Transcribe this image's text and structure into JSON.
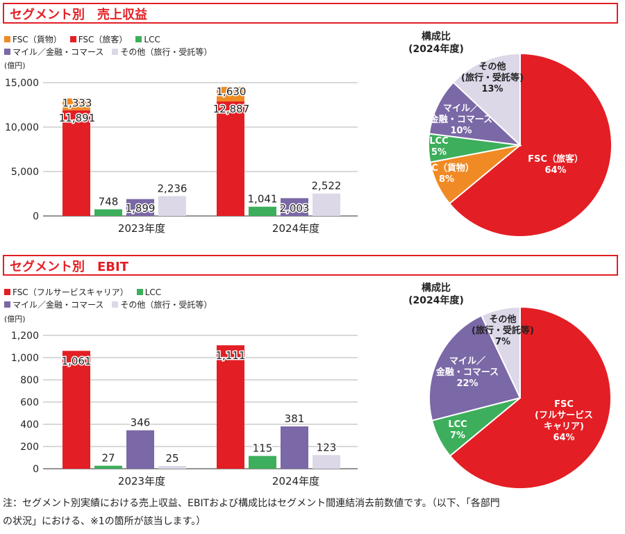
{
  "sections": [
    {
      "title": "セグメント別　売上収益"
    },
    {
      "title": "セグメント別　EBIT"
    }
  ],
  "note": {
    "line1": "注：セグメント別実績における売上収益、EBITおよび構成比はセグメント間連結消去前数値です。（以下、「各部門",
    "line2": "の状況」における、※1の箇所が該当します。）"
  },
  "colors": {
    "fsc_cargo": "#f08a24",
    "fsc": "#e31e24",
    "lcc": "#3dae5b",
    "mile": "#7b68a6",
    "other": "#dcd8e8",
    "title_red": "#e31e24"
  },
  "chart_data": [
    {
      "type": "bar",
      "legend": [
        {
          "label": "FSC（貨物）",
          "color": "#f08a24"
        },
        {
          "label": "FSC（旅客）",
          "color": "#e31e24"
        },
        {
          "label": "LCC",
          "color": "#3dae5b"
        },
        {
          "label": "マイル／金融・コマース",
          "color": "#7b68a6"
        },
        {
          "label": "その他（旅行・受託等）",
          "color": "#dcd8e8"
        }
      ],
      "unit": "(億円)",
      "categories": [
        "2023年度",
        "2024年度"
      ],
      "ylim": [
        0,
        15000
      ],
      "yticks": [
        "0",
        "5,000",
        "10,000",
        "15,000"
      ],
      "ytick_values": [
        0,
        5000,
        10000,
        15000
      ],
      "stacked_bar": {
        "series": [
          {
            "name": "FSC（旅客）",
            "values": [
              11891,
              12887
            ],
            "labels": [
              "11,891",
              "12,887"
            ]
          },
          {
            "name": "FSC（貨物）",
            "values": [
              1333,
              1630
            ],
            "labels": [
              "1,333",
              "1,630"
            ]
          }
        ]
      },
      "bars": [
        {
          "name": "LCC",
          "values": [
            748,
            1041
          ],
          "labels": [
            "748",
            "1,041"
          ]
        },
        {
          "name": "マイル／金融・コマース",
          "values": [
            1899,
            2003
          ],
          "labels": [
            "1,899",
            "2,003"
          ]
        },
        {
          "name": "その他（旅行・受託等）",
          "values": [
            2236,
            2522
          ],
          "labels": [
            "2,236",
            "2,522"
          ]
        }
      ],
      "grid": true
    },
    {
      "type": "pie",
      "title_line1": "構成比",
      "title_line2": "(2024年度)",
      "slices": [
        {
          "name": "FSC（旅客）",
          "label_lines": [
            "FSC（旅客）"
          ],
          "pct_label": "64%",
          "value": 64
        },
        {
          "name": "FSC（貨物）",
          "label_lines": [
            "FSC（貨物）"
          ],
          "pct_label": "8%",
          "value": 8
        },
        {
          "name": "LCC",
          "label_lines": [
            "LCC"
          ],
          "pct_label": "5%",
          "value": 5
        },
        {
          "name": "マイル／金融・コマース",
          "label_lines": [
            "マイル／",
            "金融・コマース"
          ],
          "pct_label": "10%",
          "value": 10
        },
        {
          "name": "その他（旅行・受託等）",
          "label_lines": [
            "その他",
            "(旅行・受託等)"
          ],
          "pct_label": "13%",
          "value": 13
        }
      ]
    },
    {
      "type": "bar",
      "legend": [
        {
          "label": "FSC（フルサービスキャリア）",
          "color": "#e31e24"
        },
        {
          "label": "LCC",
          "color": "#3dae5b"
        },
        {
          "label": "マイル／金融・コマース",
          "color": "#7b68a6"
        },
        {
          "label": "その他（旅行・受託等）",
          "color": "#dcd8e8"
        }
      ],
      "unit": "(億円)",
      "categories": [
        "2023年度",
        "2024年度"
      ],
      "ylim": [
        0,
        1200
      ],
      "yticks": [
        "0",
        "200",
        "400",
        "600",
        "800",
        "1,000",
        "1,200"
      ],
      "ytick_values": [
        0,
        200,
        400,
        600,
        800,
        1000,
        1200
      ],
      "bars": [
        {
          "name": "FSC（フルサービスキャリア）",
          "values": [
            1061,
            1111
          ],
          "labels": [
            "1,061",
            "1,111"
          ]
        },
        {
          "name": "LCC",
          "values": [
            27,
            115
          ],
          "labels": [
            "27",
            "115"
          ]
        },
        {
          "name": "マイル／金融・コマース",
          "values": [
            346,
            381
          ],
          "labels": [
            "346",
            "381"
          ]
        },
        {
          "name": "その他（旅行・受託等）",
          "values": [
            25,
            123
          ],
          "labels": [
            "25",
            "123"
          ]
        }
      ],
      "grid": true
    },
    {
      "type": "pie",
      "title_line1": "構成比",
      "title_line2": "(2024年度)",
      "slices": [
        {
          "name": "FSC（フルサービスキャリア）",
          "label_lines": [
            "FSC",
            "(フルサービス",
            "キャリア)"
          ],
          "pct_label": "64%",
          "value": 64
        },
        {
          "name": "LCC",
          "label_lines": [
            "LCC"
          ],
          "pct_label": "7%",
          "value": 7
        },
        {
          "name": "マイル／金融・コマース",
          "label_lines": [
            "マイル／",
            "金融・コマース"
          ],
          "pct_label": "22%",
          "value": 22
        },
        {
          "name": "その他（旅行・受託等）",
          "label_lines": [
            "その他",
            "(旅行・受託等)"
          ],
          "pct_label": "7%",
          "value": 7
        }
      ]
    }
  ]
}
